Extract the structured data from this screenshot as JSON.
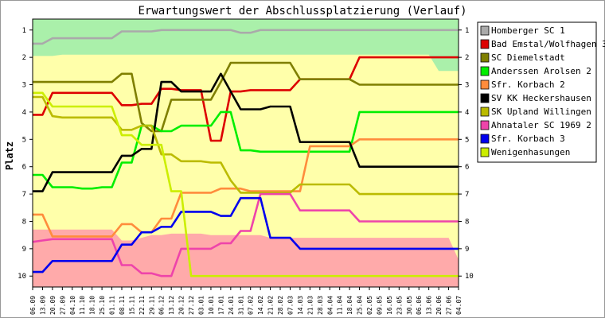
{
  "chart_data": {
    "type": "line",
    "title": "Erwartungswert der Abschlussplatzierung (Verlauf)",
    "ylabel": "Platz",
    "xlabel": "",
    "ylim": [
      0.6,
      10.4
    ],
    "y_reversed": true,
    "yticks": [
      1,
      2,
      3,
      4,
      5,
      6,
      7,
      8,
      9,
      10
    ],
    "grid": false,
    "legend_position": "right",
    "x": [
      "06.09",
      "13.09",
      "20.09",
      "27.09",
      "04.10",
      "11.10",
      "18.10",
      "25.10",
      "01.11",
      "08.11",
      "15.11",
      "22.11",
      "29.11",
      "06.12",
      "13.12",
      "20.12",
      "27.12",
      "03.01",
      "10.01",
      "17.01",
      "24.01",
      "31.01",
      "07.02",
      "14.02",
      "21.02",
      "28.02",
      "07.03",
      "14.03",
      "21.03",
      "28.03",
      "04.04",
      "11.04",
      "18.04",
      "25.04",
      "02.05",
      "09.05",
      "16.05",
      "23.05",
      "30.05",
      "06.06",
      "13.06",
      "20.06",
      "27.06",
      "04.07"
    ],
    "x_tick_labels": [
      "06.09",
      "13.09",
      "20.09",
      "27.09",
      "04.10",
      "11.10",
      "18.10",
      "25.10",
      "01.11",
      "08.11",
      "15.11",
      "22.11",
      "29.11",
      "06.12",
      "13.12",
      "20.12",
      "27.12",
      "03.01",
      "10.01",
      "17.01",
      "24.01",
      "31.01",
      "07.02",
      "14.02",
      "21.02",
      "28.02",
      "07.03",
      "14.03",
      "21.03",
      "28.03",
      "04.04",
      "11.04",
      "18.04",
      "25.04",
      "02.05",
      "09.05",
      "16.05",
      "23.05",
      "30.05",
      "06.06",
      "13.06",
      "20.06",
      "27.06",
      "04.07"
    ],
    "background_zones": [
      {
        "color": "#aaf0aa",
        "upper": [
          1.95,
          1.95,
          1.95,
          1.9,
          1.9,
          1.9,
          1.9,
          1.9,
          1.9,
          1.9,
          1.9,
          1.9,
          1.9,
          1.9,
          1.9,
          1.9,
          1.9,
          1.9,
          1.9,
          1.9,
          1.9,
          1.9,
          1.9,
          1.9,
          1.9,
          1.9,
          1.9,
          1.9,
          1.9,
          1.9,
          1.9,
          1.9,
          1.9,
          1.9,
          1.9,
          1.9,
          1.9,
          1.9,
          1.9,
          1.9,
          1.9,
          2.5,
          2.5,
          2.5
        ]
      },
      {
        "color": "#ffffaa"
      },
      {
        "color": "#ffaaaa",
        "lower": [
          8.3,
          8.3,
          8.3,
          8.3,
          8.3,
          8.3,
          8.3,
          8.3,
          8.3,
          8.7,
          8.7,
          8.6,
          8.5,
          8.5,
          8.45,
          8.45,
          8.45,
          8.45,
          8.5,
          8.5,
          8.5,
          8.5,
          8.5,
          8.5,
          8.6,
          8.6,
          8.6,
          8.6,
          8.6,
          8.6,
          8.6,
          8.6,
          8.6,
          8.6,
          8.6,
          8.6,
          8.6,
          8.6,
          8.6,
          8.6,
          8.6,
          8.6,
          8.6,
          9.4
        ]
      }
    ],
    "series": [
      {
        "name": "Homberger SC 1",
        "color": "#aaaaaa",
        "values": [
          1.5,
          1.5,
          1.3,
          1.3,
          1.3,
          1.3,
          1.3,
          1.3,
          1.3,
          1.05,
          1.05,
          1.05,
          1.05,
          1.0,
          1.0,
          1.0,
          1.0,
          1.0,
          1.0,
          1.0,
          1.0,
          1.1,
          1.1,
          1.0,
          1.0,
          1.0,
          1.0,
          1.0,
          1.0,
          1.0,
          1.0,
          1.0,
          1.0,
          1.0,
          1.0,
          1.0,
          1.0,
          1.0,
          1.0,
          1.0,
          1.0,
          1.0,
          1.0,
          1.0
        ]
      },
      {
        "name": "Bad Emstal/Wolfhagen 3",
        "color": "#dd0000",
        "values": [
          4.1,
          4.1,
          3.3,
          3.3,
          3.3,
          3.3,
          3.3,
          3.3,
          3.3,
          3.75,
          3.75,
          3.7,
          3.7,
          3.15,
          3.15,
          3.2,
          3.2,
          3.2,
          5.05,
          5.05,
          3.25,
          3.25,
          3.2,
          3.2,
          3.2,
          3.2,
          3.2,
          2.8,
          2.8,
          2.8,
          2.8,
          2.8,
          2.8,
          2.0,
          2.0,
          2.0,
          2.0,
          2.0,
          2.0,
          2.0,
          2.0,
          2.0,
          2.0,
          2.0
        ]
      },
      {
        "name": "SC Diemelstadt",
        "color": "#7f7f00",
        "values": [
          2.9,
          2.9,
          2.9,
          2.9,
          2.9,
          2.9,
          2.9,
          2.9,
          2.9,
          2.6,
          2.6,
          4.4,
          4.7,
          4.7,
          3.55,
          3.55,
          3.55,
          3.55,
          3.55,
          2.9,
          2.2,
          2.2,
          2.2,
          2.2,
          2.2,
          2.2,
          2.2,
          2.8,
          2.8,
          2.8,
          2.8,
          2.8,
          2.8,
          3.0,
          3.0,
          3.0,
          3.0,
          3.0,
          3.0,
          3.0,
          3.0,
          3.0,
          3.0,
          3.0
        ]
      },
      {
        "name": "Anderssen Arolsen 2",
        "color": "#00ee00",
        "values": [
          6.3,
          6.3,
          6.75,
          6.75,
          6.75,
          6.8,
          6.8,
          6.75,
          6.75,
          5.85,
          5.85,
          4.5,
          4.5,
          4.7,
          4.7,
          4.5,
          4.5,
          4.5,
          4.5,
          4.0,
          4.0,
          5.4,
          5.4,
          5.45,
          5.45,
          5.45,
          5.45,
          5.45,
          5.45,
          5.45,
          5.45,
          5.45,
          5.45,
          4.0,
          4.0,
          4.0,
          4.0,
          4.0,
          4.0,
          4.0,
          4.0,
          4.0,
          4.0,
          4.0
        ]
      },
      {
        "name": "Sfr. Korbach 2",
        "color": "#ff8c3c",
        "values": [
          7.75,
          7.75,
          8.55,
          8.55,
          8.55,
          8.55,
          8.55,
          8.55,
          8.55,
          8.1,
          8.1,
          8.4,
          8.4,
          7.9,
          7.9,
          6.95,
          6.95,
          6.95,
          6.95,
          6.8,
          6.8,
          6.8,
          6.9,
          6.9,
          6.9,
          6.9,
          6.9,
          6.9,
          5.25,
          5.25,
          5.25,
          5.25,
          5.25,
          5.0,
          5.0,
          5.0,
          5.0,
          5.0,
          5.0,
          5.0,
          5.0,
          5.0,
          5.0,
          5.0
        ]
      },
      {
        "name": "SV KK Heckershausen",
        "color": "#000000",
        "values": [
          6.9,
          6.9,
          6.2,
          6.2,
          6.2,
          6.2,
          6.2,
          6.2,
          6.2,
          5.6,
          5.6,
          5.35,
          5.35,
          2.9,
          2.9,
          3.25,
          3.25,
          3.25,
          3.25,
          2.6,
          3.25,
          3.9,
          3.9,
          3.9,
          3.8,
          3.8,
          3.8,
          5.1,
          5.1,
          5.1,
          5.1,
          5.1,
          5.1,
          6.0,
          6.0,
          6.0,
          6.0,
          6.0,
          6.0,
          6.0,
          6.0,
          6.0,
          6.0,
          6.0
        ]
      },
      {
        "name": "SK Upland Willingen",
        "color": "#bbbb00",
        "values": [
          3.45,
          3.45,
          4.15,
          4.2,
          4.2,
          4.2,
          4.2,
          4.2,
          4.2,
          4.65,
          4.65,
          4.5,
          4.5,
          5.55,
          5.55,
          5.8,
          5.8,
          5.8,
          5.85,
          5.85,
          6.5,
          6.95,
          6.95,
          6.95,
          6.95,
          6.95,
          6.95,
          6.65,
          6.65,
          6.65,
          6.65,
          6.65,
          6.65,
          7.0,
          7.0,
          7.0,
          7.0,
          7.0,
          7.0,
          7.0,
          7.0,
          7.0,
          7.0,
          7.0
        ]
      },
      {
        "name": "Ahnataler SC 1969 2",
        "color": "#ee44aa",
        "values": [
          8.75,
          8.7,
          8.65,
          8.65,
          8.65,
          8.65,
          8.65,
          8.65,
          8.65,
          9.6,
          9.6,
          9.9,
          9.9,
          10.0,
          10.0,
          9.0,
          9.0,
          9.0,
          9.0,
          8.8,
          8.8,
          8.35,
          8.35,
          7.0,
          7.0,
          7.0,
          7.0,
          7.6,
          7.6,
          7.6,
          7.6,
          7.6,
          7.6,
          8.0,
          8.0,
          8.0,
          8.0,
          8.0,
          8.0,
          8.0,
          8.0,
          8.0,
          8.0,
          8.0
        ]
      },
      {
        "name": "Sfr. Korbach 3",
        "color": "#0000ee",
        "values": [
          9.85,
          9.85,
          9.45,
          9.45,
          9.45,
          9.45,
          9.45,
          9.45,
          9.45,
          8.85,
          8.85,
          8.4,
          8.4,
          8.2,
          8.2,
          7.65,
          7.65,
          7.65,
          7.65,
          7.8,
          7.8,
          7.15,
          7.15,
          7.15,
          8.6,
          8.6,
          8.6,
          9.0,
          9.0,
          9.0,
          9.0,
          9.0,
          9.0,
          9.0,
          9.0,
          9.0,
          9.0,
          9.0,
          9.0,
          9.0,
          9.0,
          9.0,
          9.0,
          9.0
        ]
      },
      {
        "name": "Wenigenhasungen",
        "color": "#ccee00",
        "values": [
          3.3,
          3.3,
          3.8,
          3.8,
          3.8,
          3.8,
          3.8,
          3.8,
          3.8,
          4.85,
          4.85,
          5.2,
          5.2,
          5.2,
          6.9,
          6.9,
          10.0,
          10.0,
          10.0,
          10.0,
          10.0,
          10.0,
          10.0,
          10.0,
          10.0,
          10.0,
          10.0,
          10.0,
          10.0,
          10.0,
          10.0,
          10.0,
          10.0,
          10.0,
          10.0,
          10.0,
          10.0,
          10.0,
          10.0,
          10.0,
          10.0,
          10.0,
          10.0,
          10.0
        ]
      }
    ]
  }
}
